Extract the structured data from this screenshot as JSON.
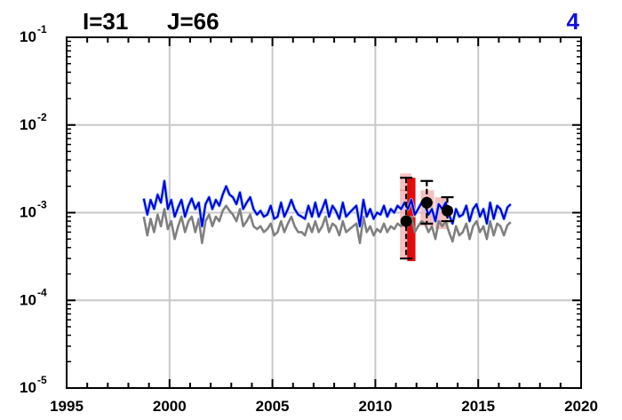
{
  "header": {
    "i_label": "I=31",
    "j_label": "J=66",
    "panel_number": "4"
  },
  "colors": {
    "model_blue": "#0000dd",
    "model_lightblue": "#99ccff",
    "model_gray": "#808080",
    "obs_box_pink": "#f4b4b4",
    "obs_box_red": "#e00000",
    "obs_points": "#000000",
    "grid": "#c8c8c8",
    "panel_number": "#1010dd"
  },
  "chart_data": {
    "type": "line",
    "title": "",
    "xlabel": "",
    "ylabel": "",
    "xlim": [
      1995,
      2020
    ],
    "ylim": [
      1e-05,
      0.1
    ],
    "yscale": "log",
    "grid": true,
    "x_ticks": [
      1995,
      2000,
      2005,
      2010,
      2015,
      2020
    ],
    "x_tick_labels": [
      "1995",
      "2000",
      "2005",
      "2010",
      "2015",
      "2020"
    ],
    "y_ticks": [
      1e-05,
      0.0001,
      0.001,
      0.01,
      0.1
    ],
    "y_tick_labels": [
      {
        "base": "10",
        "exp": "-5"
      },
      {
        "base": "10",
        "exp": "-4"
      },
      {
        "base": "10",
        "exp": "-3"
      },
      {
        "base": "10",
        "exp": "-2"
      },
      {
        "base": "10",
        "exp": "-1"
      }
    ],
    "series": [
      {
        "name": "",
        "color": "#0000dd",
        "x": [
          1998.75,
          1998.92,
          1999.08,
          1999.25,
          1999.42,
          1999.58,
          1999.75,
          1999.92,
          2000.08,
          2000.25,
          2000.42,
          2000.58,
          2000.75,
          2000.92,
          2001.08,
          2001.25,
          2001.42,
          2001.58,
          2001.75,
          2001.92,
          2002.08,
          2002.25,
          2002.42,
          2002.58,
          2002.75,
          2002.92,
          2003.08,
          2003.25,
          2003.42,
          2003.58,
          2003.75,
          2003.92,
          2004.08,
          2004.25,
          2004.42,
          2004.58,
          2004.75,
          2004.92,
          2005.08,
          2005.25,
          2005.42,
          2005.58,
          2005.75,
          2005.92,
          2006.08,
          2006.25,
          2006.42,
          2006.58,
          2006.75,
          2006.92,
          2007.08,
          2007.25,
          2007.42,
          2007.58,
          2007.75,
          2007.92,
          2008.08,
          2008.25,
          2008.42,
          2008.58,
          2008.75,
          2008.92,
          2009.08,
          2009.25,
          2009.42,
          2009.58,
          2009.75,
          2009.92,
          2010.08,
          2010.25,
          2010.42,
          2010.58,
          2010.75,
          2010.92,
          2011.08,
          2011.25,
          2011.42,
          2011.58,
          2011.75,
          2011.92,
          2012.08,
          2012.25,
          2012.42,
          2012.58,
          2012.75,
          2012.92,
          2013.08,
          2013.25,
          2013.42,
          2013.58,
          2013.75,
          2013.92,
          2014.08,
          2014.25,
          2014.42,
          2014.58,
          2014.75,
          2014.92,
          2015.08,
          2015.25,
          2015.42,
          2015.58,
          2015.75,
          2015.92,
          2016.08,
          2016.25,
          2016.42,
          2016.58
        ],
        "values": [
          0.00145,
          0.00095,
          0.0014,
          0.0011,
          0.0016,
          0.0013,
          0.0023,
          0.0011,
          0.0014,
          0.0009,
          0.00115,
          0.0014,
          0.0009,
          0.0012,
          0.00145,
          0.0011,
          0.0013,
          0.0007,
          0.00125,
          0.0015,
          0.0011,
          0.0014,
          0.0012,
          0.0016,
          0.002,
          0.0016,
          0.0015,
          0.00125,
          0.0017,
          0.0011,
          0.0013,
          0.0015,
          0.0011,
          0.00095,
          0.00105,
          0.0009,
          0.00095,
          0.0012,
          0.00085,
          0.0009,
          0.0013,
          0.0009,
          0.0011,
          0.0014,
          0.0011,
          0.00095,
          0.0009,
          0.00085,
          0.0012,
          0.0009,
          0.0013,
          0.0009,
          0.0011,
          0.0014,
          0.0009,
          0.0012,
          0.00105,
          0.00085,
          0.0013,
          0.0009,
          0.001,
          0.0011,
          0.0012,
          0.0007,
          0.0014,
          0.0009,
          0.0011,
          0.00085,
          0.001,
          0.00095,
          0.0012,
          0.0009,
          0.0011,
          0.001,
          0.0012,
          0.0011,
          0.0013,
          0.0011,
          0.0014,
          0.00095,
          0.0011,
          0.0013,
          0.0012,
          0.00095,
          0.0011,
          0.0008,
          0.00125,
          0.0011,
          0.0013,
          0.00095,
          0.00075,
          0.0011,
          0.0009,
          0.00095,
          0.0012,
          0.0008,
          0.0011,
          0.00125,
          0.0009,
          0.0011,
          0.00075,
          0.0013,
          0.00085,
          0.0012,
          0.0011,
          0.00085,
          0.00115,
          0.00125
        ]
      },
      {
        "name": "",
        "color": "#808080",
        "x": [
          1998.75,
          1998.92,
          1999.08,
          1999.25,
          1999.42,
          1999.58,
          1999.75,
          1999.92,
          2000.08,
          2000.25,
          2000.42,
          2000.58,
          2000.75,
          2000.92,
          2001.08,
          2001.25,
          2001.42,
          2001.58,
          2001.75,
          2001.92,
          2002.08,
          2002.25,
          2002.42,
          2002.58,
          2002.75,
          2002.92,
          2003.08,
          2003.25,
          2003.42,
          2003.58,
          2003.75,
          2003.92,
          2004.08,
          2004.25,
          2004.42,
          2004.58,
          2004.75,
          2004.92,
          2005.08,
          2005.25,
          2005.42,
          2005.58,
          2005.75,
          2005.92,
          2006.08,
          2006.25,
          2006.42,
          2006.58,
          2006.75,
          2006.92,
          2007.08,
          2007.25,
          2007.42,
          2007.58,
          2007.75,
          2007.92,
          2008.08,
          2008.25,
          2008.42,
          2008.58,
          2008.75,
          2008.92,
          2009.08,
          2009.25,
          2009.42,
          2009.58,
          2009.75,
          2009.92,
          2010.08,
          2010.25,
          2010.42,
          2010.58,
          2010.75,
          2010.92,
          2011.08,
          2011.25,
          2011.42,
          2011.58,
          2011.75,
          2011.92,
          2012.08,
          2012.25,
          2012.42,
          2012.58,
          2012.75,
          2012.92,
          2013.08,
          2013.25,
          2013.42,
          2013.58,
          2013.75,
          2013.92,
          2014.08,
          2014.25,
          2014.42,
          2014.58,
          2014.75,
          2014.92,
          2015.08,
          2015.25,
          2015.42,
          2015.58,
          2015.75,
          2015.92,
          2016.08,
          2016.25,
          2016.42,
          2016.58
        ],
        "values": [
          0.0009,
          0.00055,
          0.00085,
          0.0006,
          0.00095,
          0.0007,
          0.0011,
          0.00065,
          0.0008,
          0.0005,
          0.0007,
          0.0009,
          0.0006,
          0.0008,
          0.0009,
          0.0006,
          0.00085,
          0.00045,
          0.0008,
          0.00095,
          0.0007,
          0.0009,
          0.0008,
          0.00105,
          0.0012,
          0.00105,
          0.00095,
          0.0008,
          0.0011,
          0.0007,
          0.0008,
          0.00095,
          0.0007,
          0.00065,
          0.0007,
          0.0006,
          0.00065,
          0.00075,
          0.00055,
          0.0006,
          0.0008,
          0.0006,
          0.00075,
          0.0009,
          0.0007,
          0.0006,
          0.0006,
          0.00055,
          0.00075,
          0.0006,
          0.0008,
          0.0006,
          0.0007,
          0.0009,
          0.0006,
          0.00075,
          0.0007,
          0.00055,
          0.0008,
          0.0006,
          0.00065,
          0.0007,
          0.00075,
          0.00045,
          0.0009,
          0.0006,
          0.0007,
          0.00055,
          0.00065,
          0.0006,
          0.00075,
          0.0006,
          0.0007,
          0.00065,
          0.00075,
          0.0007,
          0.0008,
          0.0007,
          0.0009,
          0.0006,
          0.0007,
          0.0008,
          0.00075,
          0.0006,
          0.0007,
          0.0005,
          0.0008,
          0.0007,
          0.0008,
          0.0006,
          0.00047,
          0.0007,
          0.00055,
          0.0006,
          0.00075,
          0.0005,
          0.0007,
          0.0008,
          0.0006,
          0.0007,
          0.0005,
          0.0008,
          0.00055,
          0.00075,
          0.0007,
          0.00055,
          0.00072,
          0.00078
        ]
      }
    ],
    "obs_boxes": [
      {
        "x0": 2011.2,
        "x1": 2011.75,
        "q1": 0.0003,
        "q3": 0.0028,
        "median": 0.0018,
        "color": "#f4b4b4"
      },
      {
        "x0": 2011.55,
        "x1": 2011.95,
        "q1": 0.00028,
        "q3": 0.0025,
        "median": 0.0009,
        "color": "#e00000"
      },
      {
        "x0": 2012.2,
        "x1": 2012.85,
        "q1": 0.0007,
        "q3": 0.0018,
        "median": 0.0013,
        "color": "#f4b4b4"
      },
      {
        "x0": 2012.9,
        "x1": 2013.55,
        "q1": 0.00065,
        "q3": 0.0015,
        "median": 0.0011,
        "color": "#f4b4b4"
      }
    ],
    "obs_points": [
      {
        "x": 2011.5,
        "y": 0.0008,
        "ylow": 0.0003,
        "yhigh": 0.0025
      },
      {
        "x": 2012.5,
        "y": 0.0013,
        "ylow": 0.00075,
        "yhigh": 0.0023
      },
      {
        "x": 2013.5,
        "y": 0.00105,
        "ylow": 0.0008,
        "yhigh": 0.0015
      }
    ]
  }
}
